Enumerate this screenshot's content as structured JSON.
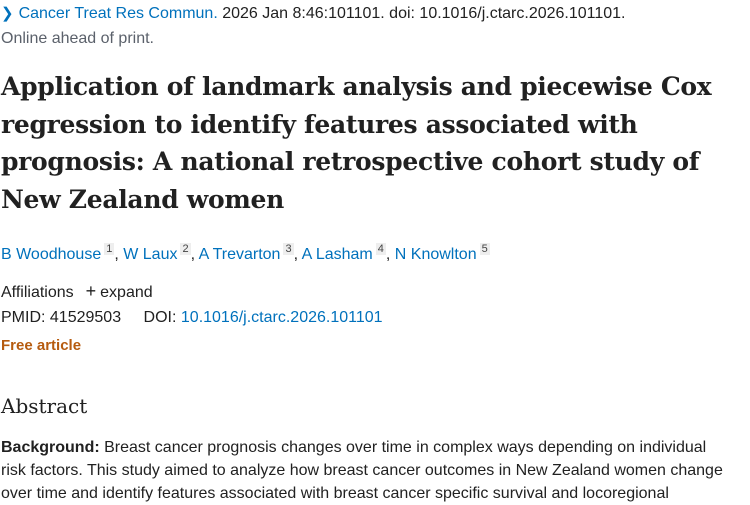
{
  "citation": {
    "journal": "Cancer Treat Res Commun.",
    "details": " 2026 Jan 8:46:101101. doi: 10.1016/j.ctarc.2026.101101.",
    "status": "Online ahead of print."
  },
  "title_lines": [
    "Application of landmark analysis and piecewise Cox",
    "regression to identify features associated with",
    "prognosis: A national retrospective cohort study of",
    "New Zealand women"
  ],
  "authors": [
    {
      "name": "B Woodhouse",
      "aff": "1"
    },
    {
      "name": "W Laux",
      "aff": "2"
    },
    {
      "name": "A Trevarton",
      "aff": "3"
    },
    {
      "name": "A Lasham",
      "aff": "4"
    },
    {
      "name": "N Knowlton",
      "aff": "5"
    }
  ],
  "affiliations": {
    "label": "Affiliations",
    "expand": "expand"
  },
  "ids": {
    "pmid_label": "PMID:",
    "pmid": "41529503",
    "doi_label": "DOI:",
    "doi": "10.1016/j.ctarc.2026.101101"
  },
  "free_article": "Free article",
  "abstract": {
    "heading": "Abstract",
    "background_label": "Background:",
    "lines": [
      " Breast cancer prognosis changes over time in complex ways depending on individual",
      "risk factors. This study aimed to analyze how breast cancer outcomes in New Zealand women change",
      "over time and identify features associated with breast cancer specific survival and locoregional"
    ]
  }
}
